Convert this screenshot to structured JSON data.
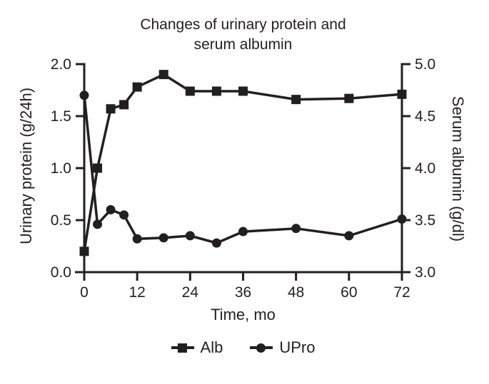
{
  "chart_data": {
    "type": "line",
    "title": "Changes of urinary protein and serum albumin",
    "title_lines": [
      "Changes of urinary protein and",
      "serum albumin"
    ],
    "xlabel": "Time, mo",
    "x": [
      0,
      3,
      6,
      9,
      12,
      18,
      24,
      30,
      36,
      48,
      60,
      72
    ],
    "x_ticks": [
      0,
      12,
      24,
      36,
      48,
      60,
      72
    ],
    "x_range": [
      0,
      72
    ],
    "left_axis": {
      "label": "Urinary protein (g/24h)",
      "min": 0.0,
      "max": 2.0,
      "ticks": [
        0.0,
        0.5,
        1.0,
        1.5,
        2.0
      ]
    },
    "right_axis": {
      "label": "Serum albumin (g/dl)",
      "min": 3.0,
      "max": 5.0,
      "ticks": [
        3.0,
        3.5,
        4.0,
        4.5,
        5.0
      ]
    },
    "series": [
      {
        "name": "Alb",
        "axis": "right",
        "marker": "square",
        "values": [
          3.2,
          4.0,
          4.57,
          4.61,
          4.78,
          4.9,
          4.74,
          4.74,
          4.74,
          4.66,
          4.67,
          4.71
        ]
      },
      {
        "name": "UPro",
        "axis": "left",
        "marker": "circle",
        "values": [
          1.7,
          0.46,
          0.6,
          0.55,
          0.32,
          0.33,
          0.35,
          0.28,
          0.39,
          0.42,
          0.35,
          0.51
        ]
      }
    ],
    "legend_position": "bottom-center",
    "grid": false,
    "ink_color": "#231f20",
    "background_color": "#ffffff"
  }
}
